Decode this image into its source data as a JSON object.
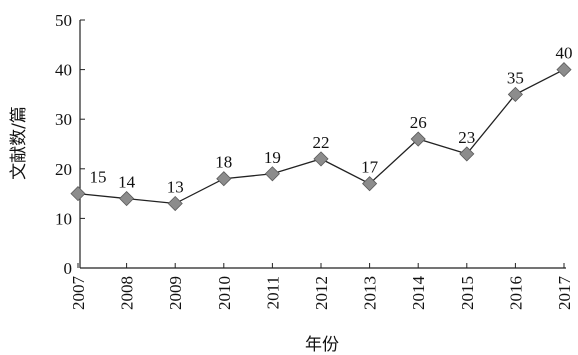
{
  "chart_data": {
    "type": "line",
    "x": [
      "2007",
      "2008",
      "2009",
      "2010",
      "2011",
      "2012",
      "2013",
      "2014",
      "2015",
      "2016",
      "2017"
    ],
    "series": [
      {
        "values": [
          15,
          14,
          13,
          18,
          19,
          22,
          17,
          26,
          23,
          35,
          40
        ]
      }
    ],
    "data_labels": [
      "15",
      "14",
      "13",
      "18",
      "19",
      "22",
      "17",
      "26",
      "23",
      "35",
      "40"
    ],
    "xlabel": "年份",
    "ylabel": "文献数/篇",
    "ylim": [
      0,
      50
    ],
    "yticks": [
      0,
      10,
      20,
      30,
      40,
      50
    ],
    "grid": false,
    "marker": "diamond",
    "colors": {
      "line": "#222222",
      "marker": "#8c8c8c"
    }
  }
}
